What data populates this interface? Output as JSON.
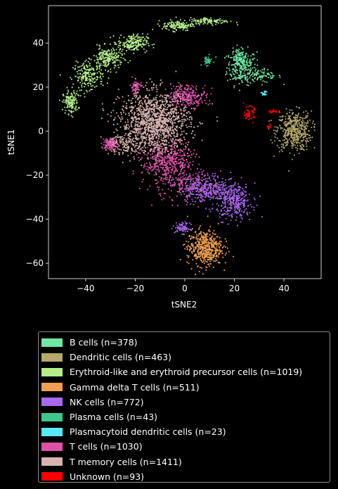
{
  "chart_data": {
    "type": "scatter",
    "xlabel": "tSNE2",
    "ylabel": "tSNE1",
    "xlim": [
      -55,
      55
    ],
    "ylim": [
      -67,
      57
    ],
    "xticks": [
      -40,
      -20,
      0,
      20,
      40
    ],
    "yticks": [
      -60,
      -40,
      -20,
      0,
      20,
      40
    ],
    "xtick_labels": [
      "−40",
      "−20",
      "0",
      "20",
      "40"
    ],
    "ytick_labels": [
      "−60",
      "−40",
      "−20",
      "0",
      "20",
      "40"
    ],
    "legend_position": "below",
    "series": [
      {
        "name": "B cells (n=378)",
        "color": "#6ee8a4",
        "clusters": [
          {
            "x": 23,
            "y": 29,
            "sx": 3,
            "sy": 4,
            "n": 240
          },
          {
            "x": 22,
            "y": 34,
            "sx": 1.5,
            "sy": 1.5,
            "n": 60
          },
          {
            "x": 31,
            "y": 25,
            "sx": 4,
            "sy": 1.5,
            "n": 78
          }
        ]
      },
      {
        "name": "Dendritic cells (n=463)",
        "color": "#b4a86a",
        "clusters": [
          {
            "x": 44,
            "y": 0,
            "sx": 3.5,
            "sy": 4.5,
            "n": 463
          }
        ]
      },
      {
        "name": "Erythroid-like and erythroid precursor cells (n=1019)",
        "color": "#b4ee88",
        "clusters": [
          {
            "x": -46,
            "y": 13,
            "sx": 1.5,
            "sy": 2.5,
            "n": 150
          },
          {
            "x": -39,
            "y": 25,
            "sx": 3,
            "sy": 3,
            "n": 200
          },
          {
            "x": -31,
            "y": 33,
            "sx": 3,
            "sy": 2.5,
            "n": 220
          },
          {
            "x": -21,
            "y": 40,
            "sx": 3,
            "sy": 2,
            "n": 200
          },
          {
            "x": -3,
            "y": 48,
            "sx": 3,
            "sy": 1.2,
            "n": 130
          },
          {
            "x": 10,
            "y": 50,
            "sx": 4,
            "sy": 0.8,
            "n": 119
          }
        ]
      },
      {
        "name": "Gamma delta T cells (n=511)",
        "color": "#f0a050",
        "clusters": [
          {
            "x": 8,
            "y": -53,
            "sx": 3.5,
            "sy": 4,
            "n": 511
          }
        ]
      },
      {
        "name": "NK cells (n=772)",
        "color": "#a868f0",
        "clusters": [
          {
            "x": 8,
            "y": -26,
            "sx": 5,
            "sy": 3,
            "n": 360
          },
          {
            "x": 20,
            "y": -32,
            "sx": 3.5,
            "sy": 4,
            "n": 340
          },
          {
            "x": -1,
            "y": -44,
            "sx": 1.5,
            "sy": 1.2,
            "n": 72
          }
        ]
      },
      {
        "name": "Plasma cells (n=43)",
        "color": "#3cc88c",
        "clusters": [
          {
            "x": 9,
            "y": 32,
            "sx": 1,
            "sy": 1,
            "n": 43
          }
        ]
      },
      {
        "name": "Plasmacytoid dendritic cells (n=23)",
        "color": "#58e8f8",
        "clusters": [
          {
            "x": 32,
            "y": 17,
            "sx": 0.6,
            "sy": 0.6,
            "n": 23
          }
        ]
      },
      {
        "name": "T cells (n=1030)",
        "color": "#e050a8",
        "clusters": [
          {
            "x": -7,
            "y": -14,
            "sx": 5,
            "sy": 4.5,
            "n": 420
          },
          {
            "x": 1,
            "y": 16,
            "sx": 4,
            "sy": 2.5,
            "n": 260
          },
          {
            "x": -30,
            "y": -6,
            "sx": 1.5,
            "sy": 1.5,
            "n": 120
          },
          {
            "x": -20,
            "y": 20,
            "sx": 1,
            "sy": 1.5,
            "n": 60
          },
          {
            "x": -2,
            "y": -24,
            "sx": 7,
            "sy": 4,
            "n": 170
          }
        ]
      },
      {
        "name": "T memory cells (n=1411)",
        "color": "#d8b4b0",
        "clusters": [
          {
            "x": -12,
            "y": 4,
            "sx": 7,
            "sy": 7,
            "n": 1300
          },
          {
            "x": -24,
            "y": -6,
            "sx": 3,
            "sy": 3,
            "n": 111
          }
        ]
      },
      {
        "name": "Unknown (n=93)",
        "color": "#ff0000",
        "clusters": [
          {
            "x": 26,
            "y": 8,
            "sx": 1,
            "sy": 1.5,
            "n": 60
          },
          {
            "x": 36,
            "y": 9,
            "sx": 1.2,
            "sy": 0.3,
            "n": 20
          },
          {
            "x": 34,
            "y": 2,
            "sx": 0.5,
            "sy": 0.5,
            "n": 13
          }
        ]
      }
    ]
  }
}
